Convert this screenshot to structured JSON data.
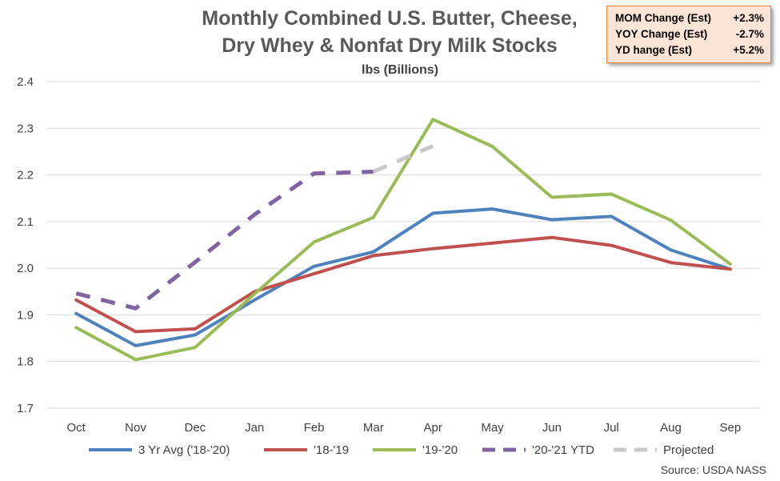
{
  "chart_data": {
    "type": "line",
    "title_lines": [
      "Monthly Combined U.S. Butter, Cheese,",
      "Dry Whey & Nonfat Dry Milk Stocks"
    ],
    "subtitle": "lbs (Billions)",
    "categories": [
      "Oct",
      "Nov",
      "Dec",
      "Jan",
      "Feb",
      "Mar",
      "Apr",
      "May",
      "Jun",
      "Jul",
      "Aug",
      "Sep"
    ],
    "ylim": [
      1.7,
      2.4
    ],
    "yticks": [
      "1.7",
      "1.8",
      "1.9",
      "2.0",
      "2.1",
      "2.2",
      "2.3",
      "2.4"
    ],
    "grid": true,
    "legend_position": "bottom",
    "series": [
      {
        "name": "3 Yr Avg ('18-'20)",
        "color": "#4f81bd",
        "dash": false,
        "values": [
          1.903,
          1.834,
          1.857,
          1.932,
          2.004,
          2.035,
          2.118,
          2.127,
          2.104,
          2.111,
          2.039,
          1.998
        ]
      },
      {
        "name": "'18-'19",
        "color": "#c0504d",
        "dash": false,
        "values": [
          1.932,
          1.864,
          1.87,
          1.95,
          1.988,
          2.027,
          2.042,
          2.054,
          2.066,
          2.049,
          2.012,
          1.998
        ]
      },
      {
        "name": "'19-'20",
        "color": "#9bbb59",
        "dash": false,
        "values": [
          1.873,
          1.804,
          1.83,
          1.945,
          2.056,
          2.109,
          2.319,
          2.261,
          2.152,
          2.159,
          2.103,
          2.009
        ]
      },
      {
        "name": "'20-'21 YTD",
        "color": "#8064a2",
        "dash": true,
        "values": [
          1.946,
          1.914,
          2.013,
          2.115,
          2.203,
          2.207,
          null,
          null,
          null,
          null,
          null,
          null
        ]
      },
      {
        "name": "Projected",
        "color": "#c8c8c8",
        "dash": true,
        "values": [
          null,
          null,
          null,
          null,
          null,
          2.207,
          2.262,
          null,
          null,
          null,
          null,
          null
        ]
      }
    ],
    "stats": [
      {
        "label": "MOM Change (Est)",
        "value": "+2.3%"
      },
      {
        "label": "YOY Change (Est)",
        "value": "-2.7%"
      },
      {
        "label": "YD hange (Est)",
        "value": "+5.2%"
      }
    ],
    "source": "Source: USDA NASS"
  }
}
